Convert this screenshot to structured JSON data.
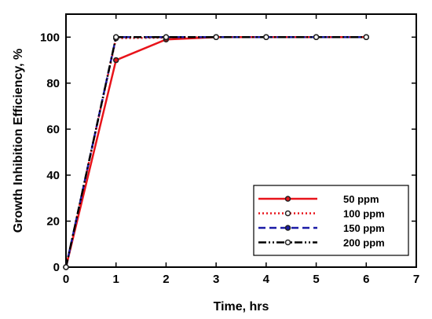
{
  "chart_data": {
    "type": "line",
    "title": "",
    "xlabel": "Time, hrs",
    "ylabel": "Growth Inhibition Efficiency, %",
    "xlim": [
      0,
      7
    ],
    "ylim": [
      0,
      110
    ],
    "xticks": [
      0,
      1,
      2,
      3,
      4,
      5,
      6,
      7
    ],
    "yticks": [
      0,
      20,
      40,
      60,
      80,
      100
    ],
    "grid": false,
    "legend_position": "bottom-right",
    "x": [
      0,
      1,
      2,
      3,
      4,
      5,
      6
    ],
    "series": [
      {
        "name": "50 ppm",
        "values": [
          0,
          90,
          99,
          100,
          100,
          100,
          100
        ],
        "color": "#e8131a",
        "line_style": "solid",
        "marker": "filled-circle"
      },
      {
        "name": "100 ppm",
        "values": [
          0,
          99.5,
          99.8,
          100,
          100,
          100,
          100
        ],
        "color": "#e8131a",
        "line_style": "dotted",
        "marker": "open-circle"
      },
      {
        "name": "150 ppm",
        "values": [
          0,
          100,
          100,
          100,
          100,
          100,
          100
        ],
        "color": "#1a1aa6",
        "line_style": "dashed",
        "marker": "filled-circle"
      },
      {
        "name": "200 ppm",
        "values": [
          0,
          100,
          100,
          100,
          100,
          100,
          100
        ],
        "color": "#000000",
        "line_style": "dash-dot-dot",
        "marker": "open-circle"
      }
    ]
  }
}
